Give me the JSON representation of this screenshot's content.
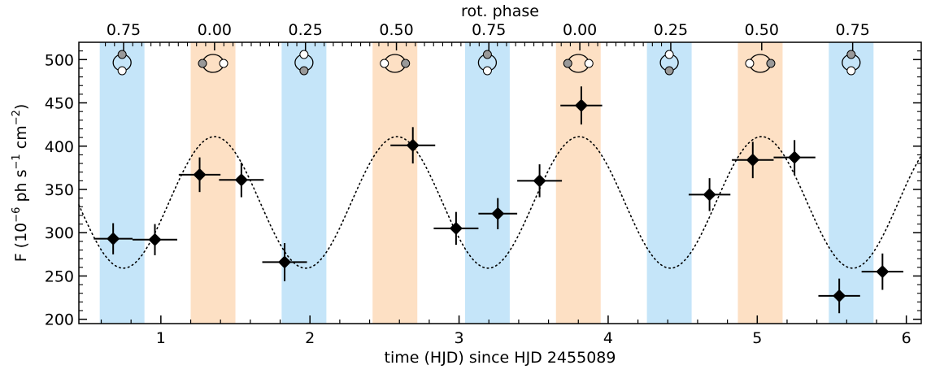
{
  "chart_data": {
    "type": "scatter",
    "xlabel": "time (HJD) since HJD 2455089",
    "top_xlabel": "rot. phase",
    "ylabel_parts": {
      "pre": "F (10",
      "exp1": "−6",
      "mid1": " ph s",
      "exp2": "−1",
      "mid2": " cm",
      "exp3": "−2",
      "post": ")"
    },
    "xlim": [
      0.45,
      6.1
    ],
    "ylim": [
      195,
      520
    ],
    "x_ticks": [
      1,
      2,
      3,
      4,
      5,
      6
    ],
    "x_tick_labels": [
      "1",
      "2",
      "3",
      "4",
      "5",
      "6"
    ],
    "y_ticks": [
      200,
      250,
      300,
      350,
      400,
      450,
      500
    ],
    "y_tick_labels": [
      "200",
      "250",
      "300",
      "350",
      "400",
      "450",
      "500"
    ],
    "top_ticks": [
      0.75,
      1.36,
      1.97,
      2.58,
      3.2,
      3.81,
      4.42,
      5.03,
      5.64
    ],
    "top_tick_labels": [
      "0.75",
      "0.00",
      "0.25",
      "0.50",
      "0.75",
      "0.00",
      "0.25",
      "0.50",
      "0.75"
    ],
    "bands": [
      {
        "x0": 0.59,
        "x1": 0.89,
        "kind": "blue",
        "icon": "vertical"
      },
      {
        "x0": 1.2,
        "x1": 1.5,
        "kind": "orange",
        "icon": "horizontal-left"
      },
      {
        "x0": 1.81,
        "x1": 2.11,
        "kind": "blue",
        "icon": "vertical-inverted"
      },
      {
        "x0": 2.42,
        "x1": 2.72,
        "kind": "orange",
        "icon": "horizontal-right"
      },
      {
        "x0": 3.04,
        "x1": 3.34,
        "kind": "blue",
        "icon": "vertical"
      },
      {
        "x0": 3.65,
        "x1": 3.95,
        "kind": "orange",
        "icon": "horizontal-left"
      },
      {
        "x0": 4.26,
        "x1": 4.56,
        "kind": "blue",
        "icon": "vertical-inverted"
      },
      {
        "x0": 4.87,
        "x1": 5.17,
        "kind": "orange",
        "icon": "horizontal-right"
      },
      {
        "x0": 5.48,
        "x1": 5.78,
        "kind": "blue",
        "icon": "vertical"
      }
    ],
    "colors": {
      "blue_band": "#c5e5f9",
      "orange_band": "#fde0c4",
      "marker": "#000000",
      "icon_gray": "#999999"
    },
    "points": [
      {
        "x": 0.68,
        "y": 293,
        "xerr": 0.13,
        "yerr": 18
      },
      {
        "x": 0.96,
        "y": 292,
        "xerr": 0.15,
        "yerr": 18
      },
      {
        "x": 1.26,
        "y": 367,
        "xerr": 0.14,
        "yerr": 20
      },
      {
        "x": 1.54,
        "y": 361,
        "xerr": 0.15,
        "yerr": 20
      },
      {
        "x": 1.83,
        "y": 266,
        "xerr": 0.15,
        "yerr": 22
      },
      {
        "x": 2.69,
        "y": 401,
        "xerr": 0.15,
        "yerr": 21
      },
      {
        "x": 2.98,
        "y": 305,
        "xerr": 0.15,
        "yerr": 19
      },
      {
        "x": 3.26,
        "y": 322,
        "xerr": 0.13,
        "yerr": 18
      },
      {
        "x": 3.54,
        "y": 360,
        "xerr": 0.15,
        "yerr": 19
      },
      {
        "x": 3.82,
        "y": 447,
        "xerr": 0.14,
        "yerr": 22
      },
      {
        "x": 4.68,
        "y": 344,
        "xerr": 0.14,
        "yerr": 19
      },
      {
        "x": 4.97,
        "y": 384,
        "xerr": 0.14,
        "yerr": 21
      },
      {
        "x": 5.25,
        "y": 387,
        "xerr": 0.14,
        "yerr": 20
      },
      {
        "x": 5.55,
        "y": 227,
        "xerr": 0.14,
        "yerr": 20
      },
      {
        "x": 5.84,
        "y": 255,
        "xerr": 0.14,
        "yerr": 21
      }
    ],
    "model": {
      "type": "sinusoid",
      "mean": 335,
      "amplitude": 76,
      "period": 1.223,
      "peak_x": 1.36
    }
  }
}
